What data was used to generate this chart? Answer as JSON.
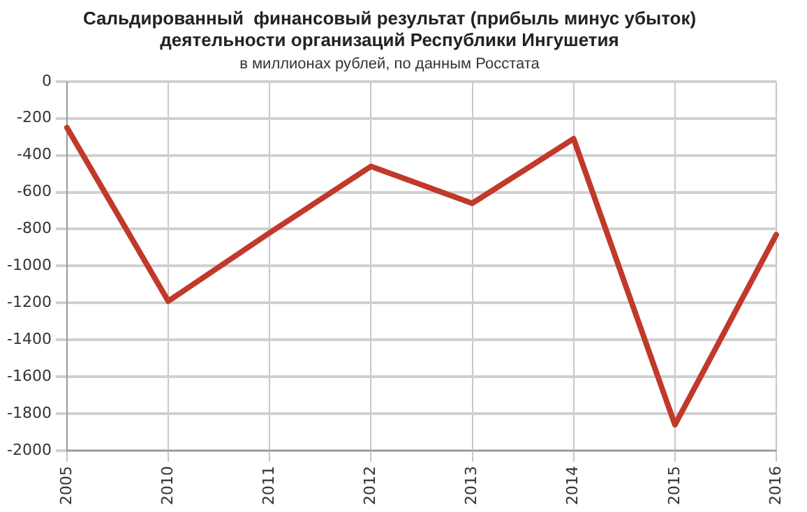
{
  "chart_data": {
    "type": "line",
    "title": [
      "Сальдированный  финансовый результат (прибыль минус убыток)",
      "деятельности организаций Республики Ингушетия"
    ],
    "subtitle": "в миллионах рублей, по данным Росстата",
    "categories": [
      "2005",
      "2010",
      "2011",
      "2012",
      "2013",
      "2014",
      "2015",
      "2016"
    ],
    "series": [
      {
        "color": "#c0392b",
        "values": [
          -250,
          -1190,
          -820,
          -460,
          -660,
          -310,
          -1860,
          -830
        ]
      }
    ],
    "ylim": [
      -2000,
      0
    ],
    "yticks": [
      -2000,
      -1800,
      -1600,
      -1400,
      -1200,
      -1000,
      -800,
      -600,
      -400,
      -200,
      0
    ],
    "grid": true,
    "legend": false,
    "marker": "none",
    "line_style": "solid"
  }
}
